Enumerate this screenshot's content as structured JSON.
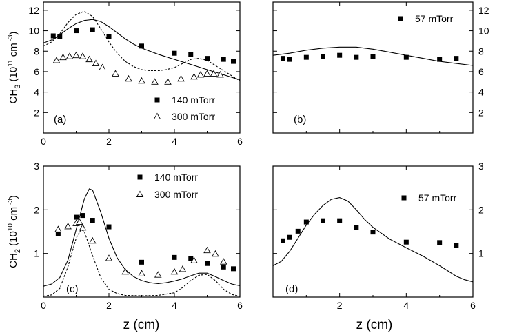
{
  "chart_data": [
    {
      "id": "a",
      "type": "scatter",
      "panel_label": "(a)",
      "xlabel": "",
      "ylabel_main": "CH",
      "ylabel_sub": "3",
      "ylabel_unit_open": "(10",
      "ylabel_unit_exp": "11",
      "ylabel_unit_mid": "cm",
      "ylabel_unit_exp2": "-3",
      "ylabel_unit_close": ")",
      "xlim": [
        0,
        6
      ],
      "ylim": [
        0,
        12.8
      ],
      "xticks": [
        0,
        2,
        4,
        6
      ],
      "xtick_labels": [
        "0",
        "2",
        "4",
        "6"
      ],
      "yticks": [
        2,
        4,
        6,
        8,
        10,
        12
      ],
      "ytick_labels": [
        "2",
        "4",
        "6",
        "8",
        "10",
        "12"
      ],
      "legend": [
        {
          "label": "140 mTorr",
          "marker": "square"
        },
        {
          "label": "300 mTorr",
          "marker": "triangle"
        }
      ],
      "series": [
        {
          "name": "140 mTorr",
          "marker": "square",
          "x": [
            0.3,
            0.5,
            1.0,
            1.5,
            2.0,
            3.0,
            4.0,
            4.5,
            5.0,
            5.5,
            5.8
          ],
          "y": [
            9.5,
            9.4,
            10.0,
            10.1,
            9.4,
            8.5,
            7.8,
            7.7,
            7.3,
            7.2,
            7.0
          ]
        },
        {
          "name": "300 mTorr",
          "marker": "triangle",
          "x": [
            0.4,
            0.6,
            0.8,
            1.0,
            1.2,
            1.4,
            1.6,
            1.8,
            2.2,
            2.6,
            3.0,
            3.4,
            3.8,
            4.2,
            4.6,
            4.8,
            5.0,
            5.2,
            5.4
          ],
          "y": [
            7.1,
            7.4,
            7.5,
            7.6,
            7.5,
            7.2,
            6.8,
            6.4,
            5.8,
            5.3,
            5.1,
            5.0,
            5.0,
            5.3,
            5.5,
            5.7,
            5.8,
            5.8,
            5.7
          ]
        },
        {
          "name": "model 140 mTorr",
          "style": "solid",
          "x": [
            0,
            0.25,
            0.5,
            0.75,
            1.0,
            1.25,
            1.5,
            1.75,
            2.0,
            2.25,
            2.5,
            2.75,
            3.0,
            3.5,
            4.0,
            4.5,
            5.0,
            5.5,
            6.0
          ],
          "y": [
            8.8,
            9.1,
            9.6,
            10.2,
            10.7,
            11.0,
            11.1,
            10.9,
            10.4,
            9.8,
            9.2,
            8.7,
            8.3,
            7.7,
            7.2,
            6.7,
            6.2,
            5.7,
            5.2
          ]
        },
        {
          "name": "model 300 mTorr",
          "style": "dashed",
          "x": [
            0,
            0.25,
            0.5,
            0.75,
            1.0,
            1.25,
            1.5,
            1.75,
            2.0,
            2.25,
            2.5,
            2.75,
            3.0,
            3.25,
            3.5,
            3.75,
            4.0,
            4.25,
            4.5,
            4.75,
            5.0,
            5.25,
            5.5,
            5.75,
            6.0
          ],
          "y": [
            8.5,
            8.9,
            9.7,
            10.8,
            11.6,
            11.9,
            11.4,
            10.2,
            8.9,
            7.8,
            7.0,
            6.5,
            6.2,
            6.1,
            6.1,
            6.2,
            6.4,
            6.8,
            7.2,
            7.3,
            7.1,
            6.6,
            6.1,
            5.6,
            5.1
          ]
        }
      ]
    },
    {
      "id": "b",
      "type": "scatter",
      "panel_label": "(b)",
      "xlabel": "",
      "xlim": [
        0,
        6
      ],
      "ylim": [
        0,
        12.8
      ],
      "xticks": [
        0,
        2,
        4,
        6
      ],
      "xtick_labels": [
        "",
        "",
        "",
        ""
      ],
      "yticks": [
        2,
        4,
        6,
        8,
        10,
        12
      ],
      "ytick_labels": [
        "2",
        "4",
        "6",
        "8",
        "10",
        "12"
      ],
      "legend": [
        {
          "label": "57 mTorr",
          "marker": "square"
        }
      ],
      "series": [
        {
          "name": "57 mTorr",
          "marker": "square",
          "x": [
            0.3,
            0.5,
            1.0,
            1.5,
            2.0,
            2.5,
            3.0,
            4.0,
            5.0,
            5.5
          ],
          "y": [
            7.3,
            7.2,
            7.4,
            7.5,
            7.6,
            7.4,
            7.5,
            7.4,
            7.2,
            7.3
          ]
        },
        {
          "name": "model 57 mTorr",
          "style": "solid",
          "x": [
            0,
            0.5,
            1.0,
            1.5,
            2.0,
            2.5,
            3.0,
            3.5,
            4.0,
            4.5,
            5.0,
            5.5,
            6.0
          ],
          "y": [
            7.6,
            7.8,
            8.1,
            8.3,
            8.4,
            8.4,
            8.2,
            7.9,
            7.6,
            7.3,
            7.0,
            6.8,
            6.6
          ]
        }
      ]
    },
    {
      "id": "c",
      "type": "scatter",
      "panel_label": "(c)",
      "xlabel": "z (cm)",
      "ylabel_main": "CH",
      "ylabel_sub": "2",
      "ylabel_unit_open": "(10",
      "ylabel_unit_exp": "10",
      "ylabel_unit_mid": "cm",
      "ylabel_unit_exp2": "-3",
      "ylabel_unit_close": ")",
      "xlim": [
        0,
        6
      ],
      "ylim": [
        0,
        3
      ],
      "xticks": [
        0,
        2,
        4,
        6
      ],
      "xtick_labels": [
        "0",
        "2",
        "4",
        "6"
      ],
      "yticks": [
        1,
        2,
        3
      ],
      "ytick_labels": [
        "1",
        "2",
        "3"
      ],
      "legend": [
        {
          "label": "140 mTorr",
          "marker": "square"
        },
        {
          "label": "300 mTorr",
          "marker": "triangle"
        }
      ],
      "series": [
        {
          "name": "140 mTorr",
          "marker": "square",
          "x": [
            0.45,
            1.0,
            1.2,
            1.5,
            2.0,
            3.0,
            4.0,
            4.5,
            5.0,
            5.5,
            5.8
          ],
          "y": [
            1.46,
            1.83,
            1.87,
            1.76,
            1.61,
            0.8,
            0.91,
            0.88,
            0.77,
            0.69,
            0.65
          ]
        },
        {
          "name": "300 mTorr",
          "marker": "triangle",
          "x": [
            0.45,
            0.75,
            1.0,
            1.1,
            1.2,
            1.5,
            2.0,
            2.5,
            3.0,
            3.5,
            4.0,
            4.25,
            4.6,
            5.0,
            5.25,
            5.5
          ],
          "y": [
            1.55,
            1.62,
            1.69,
            1.72,
            1.59,
            1.29,
            0.89,
            0.58,
            0.54,
            0.51,
            0.58,
            0.64,
            0.84,
            1.07,
            0.99,
            0.81
          ]
        },
        {
          "name": "model 140 mTorr",
          "style": "solid",
          "x": [
            0,
            0.25,
            0.5,
            0.75,
            1.0,
            1.25,
            1.4,
            1.5,
            1.75,
            2.0,
            2.25,
            2.5,
            2.75,
            3.0,
            3.25,
            3.5,
            3.75,
            4.0,
            4.25,
            4.5,
            4.75,
            5.0,
            5.25,
            5.5,
            5.75,
            6.0
          ],
          "y": [
            0.25,
            0.3,
            0.45,
            0.85,
            1.55,
            2.25,
            2.48,
            2.45,
            1.95,
            1.35,
            0.9,
            0.63,
            0.47,
            0.38,
            0.33,
            0.31,
            0.33,
            0.37,
            0.42,
            0.49,
            0.55,
            0.55,
            0.47,
            0.38,
            0.3,
            0.26
          ]
        },
        {
          "name": "model 300 mTorr",
          "style": "dashed",
          "x": [
            0,
            0.25,
            0.5,
            0.75,
            1.0,
            1.15,
            1.25,
            1.5,
            1.75,
            2.0,
            2.25,
            2.5,
            3.0,
            3.5,
            4.0,
            4.25,
            4.5,
            4.75,
            5.0,
            5.25,
            5.5,
            5.75,
            6.0
          ],
          "y": [
            0.02,
            0.05,
            0.2,
            0.7,
            1.35,
            1.55,
            1.5,
            0.95,
            0.45,
            0.18,
            0.08,
            0.04,
            0.03,
            0.04,
            0.1,
            0.22,
            0.38,
            0.5,
            0.52,
            0.38,
            0.18,
            0.06,
            0.02
          ]
        }
      ]
    },
    {
      "id": "d",
      "type": "scatter",
      "panel_label": "(d)",
      "xlabel": "z (cm)",
      "xlim": [
        0,
        6
      ],
      "ylim": [
        0,
        3
      ],
      "xticks": [
        0,
        2,
        4,
        6
      ],
      "xtick_labels": [
        "",
        "2",
        "4",
        "6"
      ],
      "yticks": [
        1,
        2,
        3
      ],
      "ytick_labels": [
        "1",
        "2",
        "3"
      ],
      "legend": [
        {
          "label": "57 mTorr",
          "marker": "square"
        }
      ],
      "series": [
        {
          "name": "57 mTorr",
          "marker": "square",
          "x": [
            0.3,
            0.5,
            0.75,
            1.0,
            1.5,
            2.0,
            2.5,
            3.0,
            4.0,
            5.0,
            5.5
          ],
          "y": [
            1.29,
            1.37,
            1.51,
            1.72,
            1.75,
            1.75,
            1.6,
            1.49,
            1.26,
            1.25,
            1.18
          ]
        },
        {
          "name": "model 57 mTorr",
          "style": "solid",
          "x": [
            0,
            0.25,
            0.5,
            0.75,
            1.0,
            1.25,
            1.5,
            1.75,
            2.0,
            2.25,
            2.5,
            2.75,
            3.0,
            3.5,
            4.0,
            4.5,
            5.0,
            5.25,
            5.5,
            5.75,
            6.0
          ],
          "y": [
            0.72,
            0.82,
            1.05,
            1.35,
            1.65,
            1.9,
            2.1,
            2.24,
            2.28,
            2.2,
            2.0,
            1.78,
            1.6,
            1.33,
            1.13,
            0.94,
            0.72,
            0.6,
            0.48,
            0.4,
            0.35
          ]
        }
      ]
    }
  ]
}
